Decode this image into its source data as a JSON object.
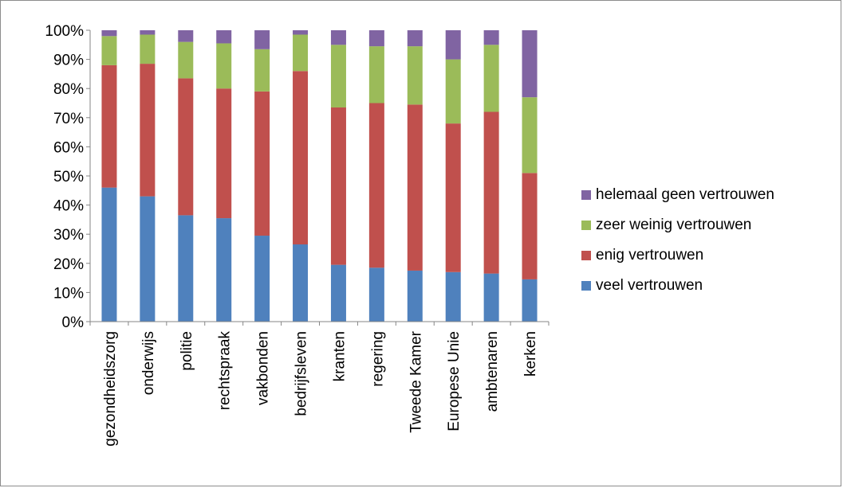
{
  "chart_data": {
    "type": "bar",
    "stacked": true,
    "normalized": true,
    "categories": [
      "gezondheidszorg",
      "onderwijs",
      "politie",
      "rechtspraak",
      "vakbonden",
      "bedrijfsleven",
      "kranten",
      "regering",
      "Tweede Kamer",
      "Europese Unie",
      "ambtenaren",
      "kerken"
    ],
    "series": [
      {
        "name": "veel vertrouwen",
        "color": "#4F81BD",
        "values": [
          46,
          43,
          36.5,
          35.5,
          29.5,
          26.5,
          19.5,
          18.5,
          17.5,
          17,
          16.5,
          14.5
        ]
      },
      {
        "name": "enig vertrouwen",
        "color": "#C0504D",
        "values": [
          42,
          45.5,
          47,
          44.5,
          49.5,
          59.5,
          54,
          56.5,
          57,
          51,
          55.5,
          36.5
        ]
      },
      {
        "name": "zeer weinig vertrouwen",
        "color": "#9BBB59",
        "values": [
          10,
          10,
          12.5,
          15.5,
          14.5,
          12.5,
          21.5,
          19.5,
          20,
          22,
          23,
          26
        ]
      },
      {
        "name": "helemaal geen vertrouwen",
        "color": "#8064A2",
        "values": [
          2,
          1.5,
          4,
          4.5,
          6.5,
          1.5,
          5,
          5.5,
          5.5,
          10,
          5,
          23
        ]
      }
    ],
    "yticks": [
      "0%",
      "10%",
      "20%",
      "30%",
      "40%",
      "50%",
      "60%",
      "70%",
      "80%",
      "90%",
      "100%"
    ],
    "ylim": [
      0,
      100
    ],
    "grid": false,
    "legend_position": "right",
    "legend_order": [
      "helemaal geen vertrouwen",
      "zeer weinig vertrouwen",
      "enig vertrouwen",
      "veel vertrouwen"
    ]
  }
}
